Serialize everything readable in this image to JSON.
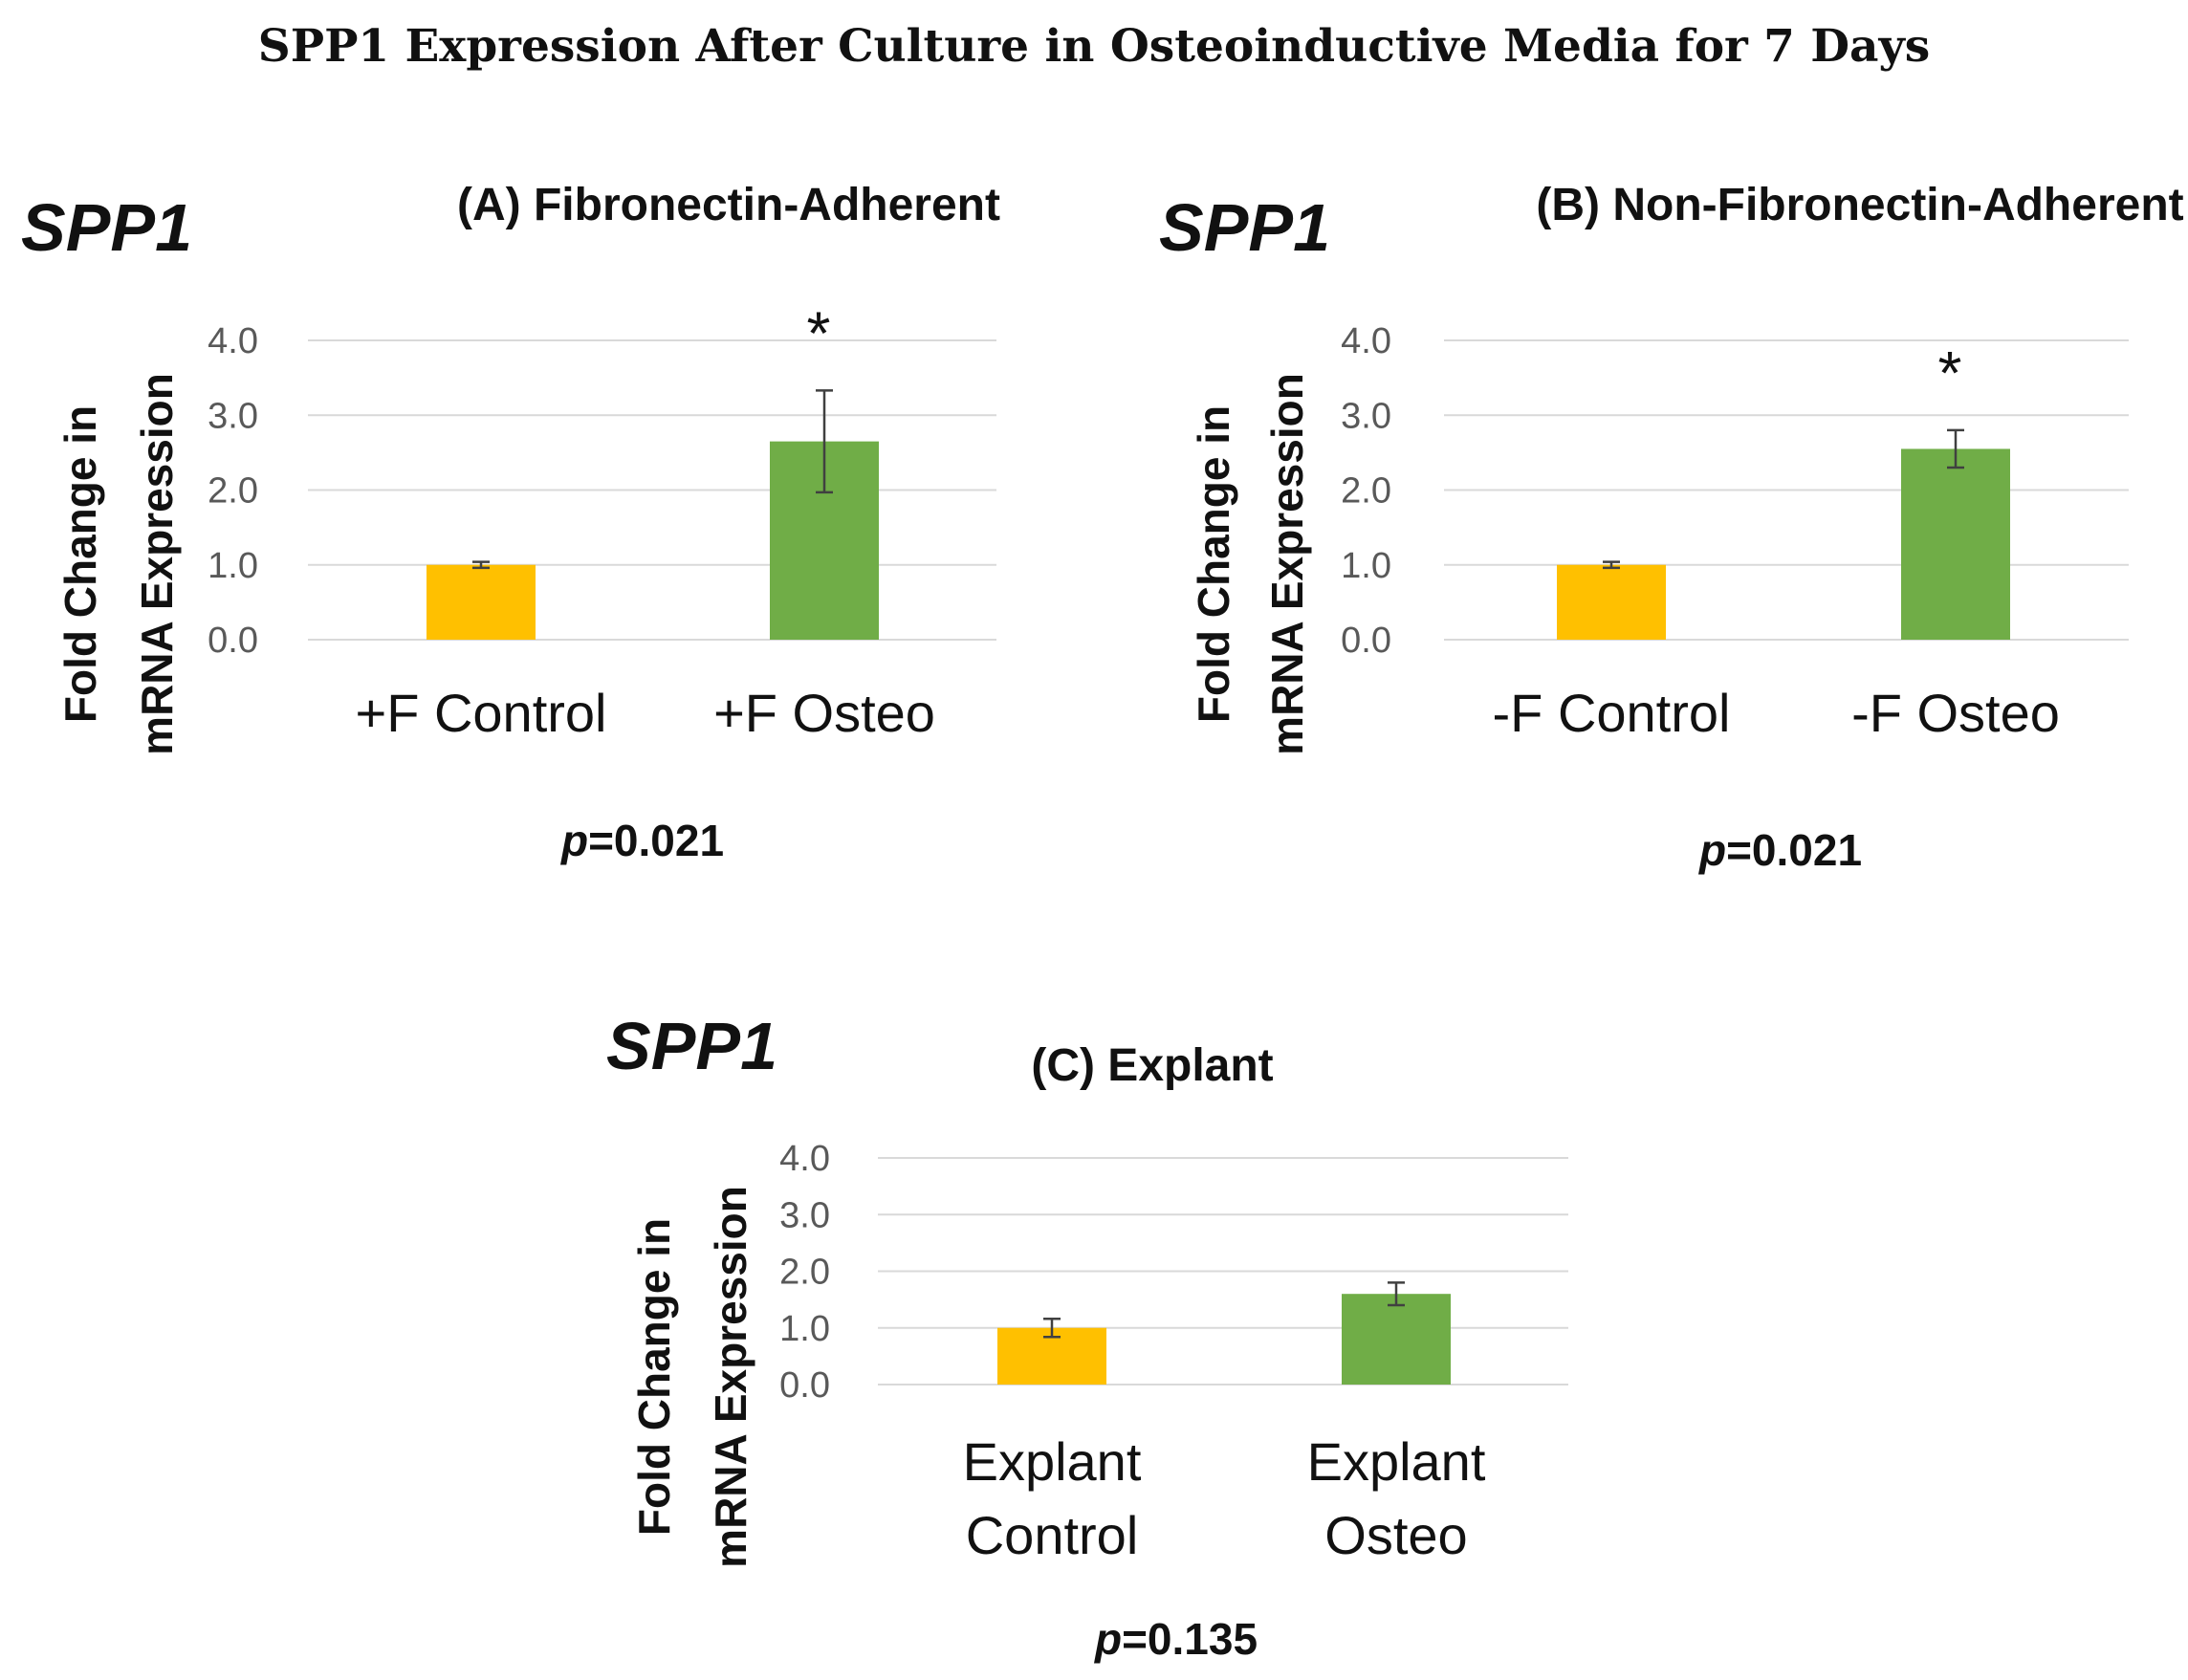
{
  "figure_title": "SPP1 Expression After Culture in Osteoinductive Media for 7 Days",
  "colors": {
    "control": "#FFC000",
    "osteo": "#70AD47",
    "grid": "#D9D9D9",
    "error_bar": "#404040"
  },
  "chart_data": [
    {
      "type": "bar",
      "gene_label": "SPP1",
      "title": "(A) Fibronectin-Adherent",
      "ylabel_line1": "Fold Change in",
      "ylabel_line2": "mRNA Expression",
      "ylim": [
        0,
        4
      ],
      "yticks": [
        "0.0",
        "1.0",
        "2.0",
        "3.0",
        "4.0"
      ],
      "categories": [
        [
          "+F Control"
        ],
        [
          "+F Osteo"
        ]
      ],
      "values": [
        1.0,
        2.65
      ],
      "errors": [
        0.04,
        0.68
      ],
      "significance": [
        "",
        "*"
      ],
      "p_prefix": "p",
      "p_value": "=0.021"
    },
    {
      "type": "bar",
      "gene_label": "SPP1",
      "title": "(B) Non-Fibronectin-Adherent",
      "ylabel_line1": "Fold Change in",
      "ylabel_line2": "mRNA Expression",
      "ylim": [
        0,
        4
      ],
      "yticks": [
        "0.0",
        "1.0",
        "2.0",
        "3.0",
        "4.0"
      ],
      "categories": [
        [
          "-F Control"
        ],
        [
          "-F Osteo"
        ]
      ],
      "values": [
        1.0,
        2.55
      ],
      "errors": [
        0.04,
        0.25
      ],
      "significance": [
        "",
        "*"
      ],
      "p_prefix": "p",
      "p_value": "=0.021"
    },
    {
      "type": "bar",
      "gene_label": "SPP1",
      "title": "(C) Explant",
      "ylabel_line1": "Fold Change in",
      "ylabel_line2": "mRNA Expression",
      "ylim": [
        0,
        4
      ],
      "yticks": [
        "0.0",
        "1.0",
        "2.0",
        "3.0",
        "4.0"
      ],
      "categories": [
        [
          "Explant",
          "Control"
        ],
        [
          "Explant",
          "Osteo"
        ]
      ],
      "values": [
        1.0,
        1.6
      ],
      "errors": [
        0.16,
        0.2
      ],
      "significance": [
        "",
        ""
      ],
      "p_prefix": "p",
      "p_value": "=0.135"
    }
  ]
}
